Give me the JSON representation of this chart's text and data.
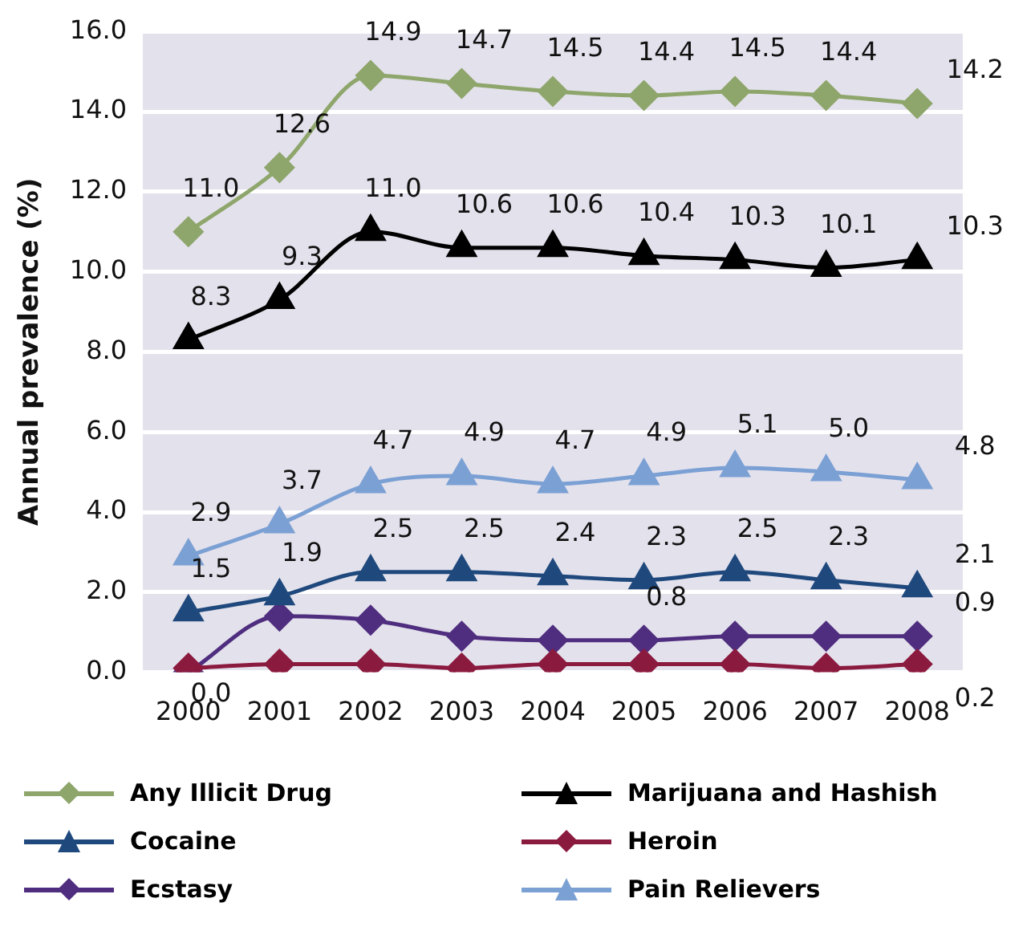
{
  "chart_data": {
    "type": "line",
    "ylabel": "Annual prevalence (%)",
    "categories": [
      "2000",
      "2001",
      "2002",
      "2003",
      "2004",
      "2005",
      "2006",
      "2007",
      "2008"
    ],
    "ylim": [
      0,
      16
    ],
    "yticks": [
      {
        "value": 0,
        "label": "0.0"
      },
      {
        "value": 2,
        "label": "2.0"
      },
      {
        "value": 4,
        "label": "4.0"
      },
      {
        "value": 6,
        "label": "6.0"
      },
      {
        "value": 8,
        "label": "8.0"
      },
      {
        "value": 10,
        "label": "10.0"
      },
      {
        "value": 12,
        "label": "12.0"
      },
      {
        "value": 14,
        "label": "14.0"
      },
      {
        "value": 16,
        "label": "16.0"
      }
    ],
    "grid": "y",
    "legend": "bottom",
    "series": [
      {
        "name": "Any Illicit Drug",
        "color": "#8ea66b",
        "marker": "diamond",
        "values": [
          11.0,
          12.6,
          14.9,
          14.7,
          14.5,
          14.4,
          14.5,
          14.4,
          14.2
        ],
        "value_labels": [
          "11.0",
          "12.6",
          "14.9",
          "14.7",
          "14.5",
          "14.4",
          "14.5",
          "14.4",
          "14.2"
        ]
      },
      {
        "name": "Marijuana and Hashish",
        "color": "#000000",
        "marker": "triangle",
        "values": [
          8.3,
          9.3,
          11.0,
          10.6,
          10.6,
          10.4,
          10.3,
          10.1,
          10.3
        ],
        "value_labels": [
          "8.3",
          "9.3",
          "11.0",
          "10.6",
          "10.6",
          "10.4",
          "10.3",
          "10.1",
          "10.3"
        ]
      },
      {
        "name": "Cocaine",
        "color": "#1f497d",
        "marker": "triangle",
        "values": [
          1.5,
          1.9,
          2.5,
          2.5,
          2.4,
          2.3,
          2.5,
          2.3,
          2.1
        ],
        "value_labels": [
          "1.5",
          "1.9",
          "2.5",
          "2.5",
          "2.4",
          "2.3",
          "2.5",
          "2.3",
          "2.1"
        ]
      },
      {
        "name": "Heroin",
        "color": "#8b1a3f",
        "marker": "diamond",
        "values": [
          0.1,
          0.2,
          0.2,
          0.1,
          0.2,
          0.2,
          0.2,
          0.1,
          0.2
        ],
        "value_labels": [
          null,
          null,
          null,
          null,
          null,
          null,
          null,
          null,
          "0.2"
        ]
      },
      {
        "name": "Ecstasy",
        "color": "#4f2d7f",
        "marker": "diamond",
        "values": [
          0.0,
          1.4,
          1.3,
          0.9,
          0.8,
          0.8,
          0.9,
          0.9,
          0.9
        ],
        "value_labels": [
          "0.0",
          null,
          null,
          null,
          null,
          "0.8",
          null,
          null,
          "0.9"
        ]
      },
      {
        "name": "Pain Relievers",
        "color": "#7ba0d4",
        "marker": "triangle",
        "values": [
          2.9,
          3.7,
          4.7,
          4.9,
          4.7,
          4.9,
          5.1,
          5.0,
          4.8
        ],
        "value_labels": [
          "2.9",
          "3.7",
          "4.7",
          "4.9",
          "4.7",
          "4.9",
          "5.1",
          "5.0",
          "4.8"
        ]
      }
    ]
  }
}
